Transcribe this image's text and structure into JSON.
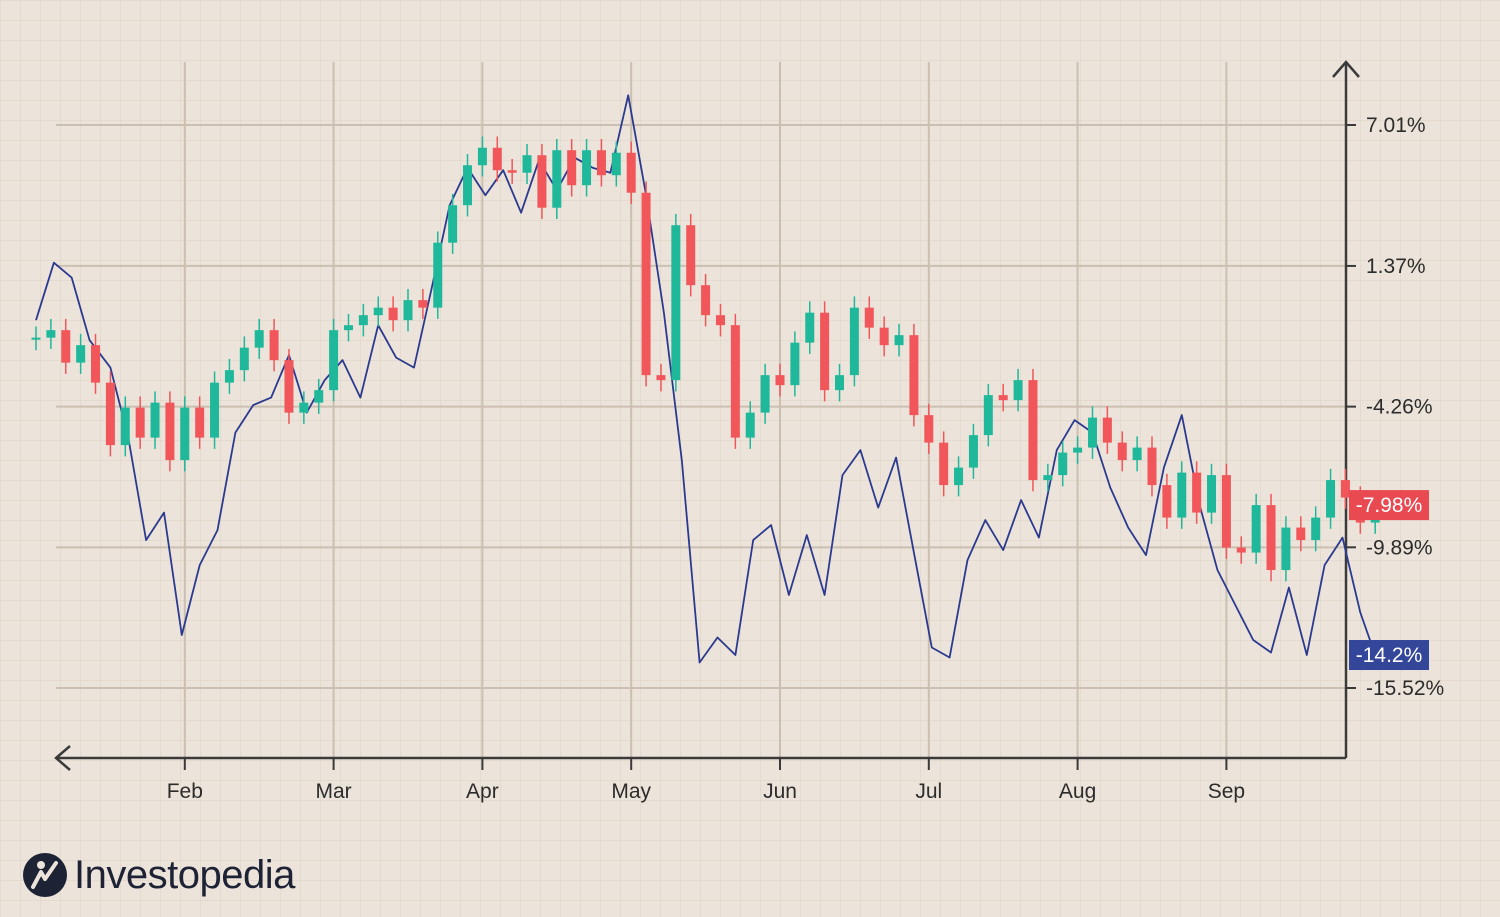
{
  "chart_data": {
    "type": "line",
    "x_ticks": [
      "Feb",
      "Mar",
      "Apr",
      "May",
      "Jun",
      "Jul",
      "Aug",
      "Sep"
    ],
    "y_ticks": [
      "7.01%",
      "1.37%",
      "-4.26%",
      "-9.89%",
      "-15.52%"
    ],
    "y_tick_values": [
      7.01,
      1.37,
      -4.26,
      -9.89,
      -15.52
    ],
    "ylim": [
      -18.2,
      9.7
    ],
    "grid": true,
    "series": [
      {
        "type": "candlestick",
        "color_up": "#1fb89b",
        "color_down": "#f0565a",
        "end_label": "-7.98%",
        "x_months": [
          0.0,
          0.1,
          0.2,
          0.3,
          0.4,
          0.5,
          0.6,
          0.7,
          0.8,
          0.9,
          1.0,
          1.1,
          1.2,
          1.3,
          1.4,
          1.5,
          1.6,
          1.7,
          1.8,
          1.9,
          2.0,
          2.1,
          2.2,
          2.3,
          2.4,
          2.5,
          2.6,
          2.7,
          2.8,
          2.9,
          3.0,
          3.1,
          3.2,
          3.3,
          3.4,
          3.5,
          3.6,
          3.7,
          3.8,
          3.9,
          4.0,
          4.1,
          4.2,
          4.3,
          4.4,
          4.5,
          4.6,
          4.7,
          4.8,
          4.9,
          5.0,
          5.1,
          5.2,
          5.3,
          5.4,
          5.5,
          5.6,
          5.7,
          5.8,
          5.9,
          6.0,
          6.1,
          6.2,
          6.3,
          6.4,
          6.5,
          6.6,
          6.7,
          6.8,
          6.9,
          7.0,
          7.1,
          7.2,
          7.3,
          7.4,
          7.5,
          7.6,
          7.7,
          7.8,
          7.9,
          8.0,
          8.1,
          8.2,
          8.3,
          8.4,
          8.5,
          8.6,
          8.7,
          8.8,
          8.9,
          9.0
        ],
        "open": [
          -1.55,
          -1.5,
          -1.2,
          -2.5,
          -1.8,
          -3.3,
          -5.8,
          -4.3,
          -5.5,
          -4.1,
          -6.4,
          -4.3,
          -5.5,
          -3.3,
          -2.8,
          -1.9,
          -1.2,
          -2.4,
          -4.5,
          -4.1,
          -3.6,
          -1.2,
          -1.0,
          -0.6,
          -0.3,
          -0.8,
          0.0,
          -0.3,
          2.3,
          3.8,
          5.4,
          6.1,
          5.2,
          5.1,
          5.8,
          3.7,
          6.0,
          4.6,
          6.0,
          5.0,
          5.9,
          4.3,
          -3.0,
          -3.2,
          3.0,
          0.6,
          -0.6,
          -1.0,
          -5.5,
          -4.5,
          -3.0,
          -3.4,
          -1.7,
          -0.5,
          -3.6,
          -3.0,
          -0.3,
          -1.1,
          -1.8,
          -1.4,
          -4.6,
          -5.7,
          -7.4,
          -6.7,
          -5.4,
          -3.8,
          -4.0,
          -3.2,
          -7.2,
          -7.0,
          -6.1,
          -5.9,
          -4.7,
          -5.7,
          -6.4,
          -5.9,
          -7.4,
          -8.7,
          -6.9,
          -8.5,
          -7.0,
          -9.9,
          -10.1,
          -8.2,
          -10.8,
          -9.1,
          -9.6,
          -8.7,
          -7.2,
          -7.9,
          -8.9
        ],
        "close": [
          -1.5,
          -1.2,
          -2.5,
          -1.8,
          -3.3,
          -5.8,
          -4.3,
          -5.5,
          -4.1,
          -6.4,
          -4.3,
          -5.5,
          -3.3,
          -2.8,
          -1.9,
          -1.2,
          -2.4,
          -4.5,
          -4.1,
          -3.6,
          -1.2,
          -1.0,
          -0.6,
          -0.3,
          -0.8,
          0.0,
          -0.3,
          2.3,
          3.8,
          5.4,
          6.1,
          5.2,
          5.1,
          5.8,
          3.7,
          6.0,
          4.6,
          6.0,
          5.0,
          5.9,
          4.3,
          -3.0,
          -3.2,
          3.0,
          0.6,
          -0.6,
          -1.0,
          -5.5,
          -4.5,
          -3.0,
          -3.4,
          -1.7,
          -0.5,
          -3.6,
          -3.0,
          -0.3,
          -1.1,
          -1.8,
          -1.4,
          -4.6,
          -5.7,
          -7.4,
          -6.7,
          -5.4,
          -3.8,
          -4.0,
          -3.2,
          -7.2,
          -7.0,
          -6.1,
          -5.9,
          -4.7,
          -5.7,
          -6.4,
          -5.9,
          -7.4,
          -8.7,
          -6.9,
          -8.5,
          -7.0,
          -9.9,
          -10.1,
          -8.2,
          -10.8,
          -9.1,
          -9.6,
          -8.7,
          -7.2,
          -7.9,
          -8.9,
          -8.2
        ]
      },
      {
        "type": "line",
        "color": "#2b3a8f",
        "end_label": "-14.2%",
        "x_months": [
          0.0,
          0.12,
          0.24,
          0.36,
          0.5,
          0.62,
          0.74,
          0.86,
          0.98,
          1.1,
          1.22,
          1.34,
          1.46,
          1.58,
          1.7,
          1.82,
          1.94,
          2.06,
          2.18,
          2.3,
          2.42,
          2.54,
          2.66,
          2.78,
          2.9,
          3.02,
          3.14,
          3.26,
          3.38,
          3.5,
          3.62,
          3.74,
          3.86,
          3.98,
          4.1,
          4.22,
          4.34,
          4.46,
          4.58,
          4.7,
          4.82,
          4.94,
          5.06,
          5.18,
          5.3,
          5.42,
          5.54,
          5.66,
          5.78,
          5.9,
          6.02,
          6.14,
          6.26,
          6.38,
          6.5,
          6.62,
          6.74,
          6.86,
          6.98,
          7.1,
          7.22,
          7.34,
          7.46,
          7.58,
          7.7,
          7.82,
          7.94,
          8.06,
          8.18,
          8.3,
          8.42,
          8.54,
          8.66,
          8.78,
          8.9,
          9.0
        ],
        "values": [
          -0.8,
          1.5,
          0.9,
          -1.6,
          -2.7,
          -5.5,
          -9.6,
          -8.5,
          -13.4,
          -10.6,
          -9.2,
          -5.3,
          -4.2,
          -3.9,
          -2.2,
          -4.5,
          -3.2,
          -2.4,
          -3.9,
          -1.0,
          -2.3,
          -2.7,
          0.5,
          3.8,
          5.3,
          4.2,
          5.2,
          3.5,
          5.6,
          4.4,
          5.7,
          5.3,
          5.1,
          8.2,
          4.2,
          -0.5,
          -6.4,
          -14.5,
          -13.5,
          -14.2,
          -9.6,
          -9.0,
          -11.8,
          -9.4,
          -11.8,
          -7.0,
          -6.0,
          -8.3,
          -6.3,
          -10.1,
          -13.9,
          -14.3,
          -10.4,
          -8.8,
          -10.0,
          -8.0,
          -9.5,
          -6.0,
          -4.8,
          -5.3,
          -7.5,
          -9.1,
          -10.2,
          -6.7,
          -4.6,
          -8.2,
          -10.8,
          -12.2,
          -13.6,
          -14.1,
          -11.5,
          -14.2,
          -10.6,
          -9.5,
          -12.5,
          -14.2
        ]
      }
    ]
  },
  "badges": {
    "red": {
      "text": "-7.98%",
      "color": "#e94a52"
    },
    "blue": {
      "text": "-14.2%",
      "color": "#33469a"
    }
  },
  "brand": {
    "name": "Investopedia"
  }
}
